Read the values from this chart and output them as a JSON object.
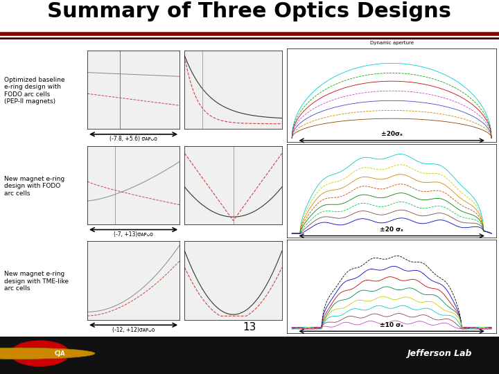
{
  "title": "Summary of Three Optics Designs",
  "title_fontsize": 22,
  "title_fontweight": "bold",
  "bg_color": "#ffffff",
  "header_line_color1": "#8b0000",
  "header_line_color2": "#cc0000",
  "rows": [
    {
      "label": "Optimized baseline\ne-ring design with\nFODO arc cells\n(PEP-II magnets)",
      "arrow_label": "(-7.8, +5.6) σᴀᴘᴗᴏ",
      "da_label": "±20σₓ"
    },
    {
      "label": "New magnet e-ring\ndesign with FODO\narc cells",
      "arrow_label": "(-7, +13)σᴀᴘᴗᴏ",
      "da_label": "±20 σₓ"
    },
    {
      "label": "New magnet e-ring\ndesign with TME-like\narc cells",
      "arrow_label": "(-12, +12)σᴀᴘᴗᴏ",
      "da_label": "±10 σₓ"
    }
  ],
  "footer_page": "13",
  "footer_bg": "#111111",
  "footer_right_text": "Jefferson Lab",
  "plot_bg": "#f0f0f0",
  "da_bg": "#ffffff",
  "da_colors_row0": [
    "#00cccc",
    "#00aa00",
    "#cc0000",
    "#cc44cc",
    "#4444cc",
    "#cc8800",
    "#884400"
  ],
  "da_colors_row1": [
    "#00cccc",
    "#cccc00",
    "#cc8800",
    "#cc4400",
    "#008800",
    "#00cc44",
    "#884444",
    "#0000cc"
  ],
  "da_colors_row2": [
    "#000000",
    "#0000cc",
    "#cc0000",
    "#008844",
    "#cccc00",
    "#00cccc",
    "#884444",
    "#cc44cc"
  ],
  "bottom_bar_color": "#111111"
}
